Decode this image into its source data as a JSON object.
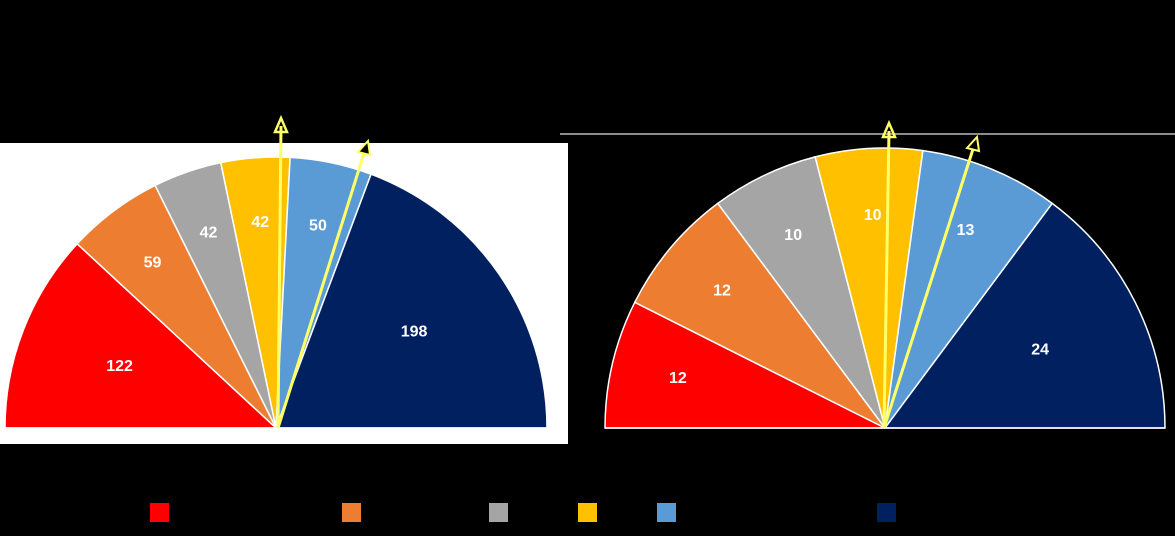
{
  "chart_data": [
    {
      "type": "semicircle",
      "values": [
        122,
        59,
        42,
        42,
        50,
        198
      ],
      "colors": [
        "#ff0000",
        "#ed7d31",
        "#a5a5a5",
        "#ffc000",
        "#5b9bd5",
        "#002060"
      ]
    },
    {
      "type": "semicircle",
      "values": [
        12,
        12,
        10,
        10,
        13,
        24
      ],
      "colors": [
        "#ff0000",
        "#ed7d31",
        "#a5a5a5",
        "#ffc000",
        "#5b9bd5",
        "#002060"
      ]
    }
  ]
}
